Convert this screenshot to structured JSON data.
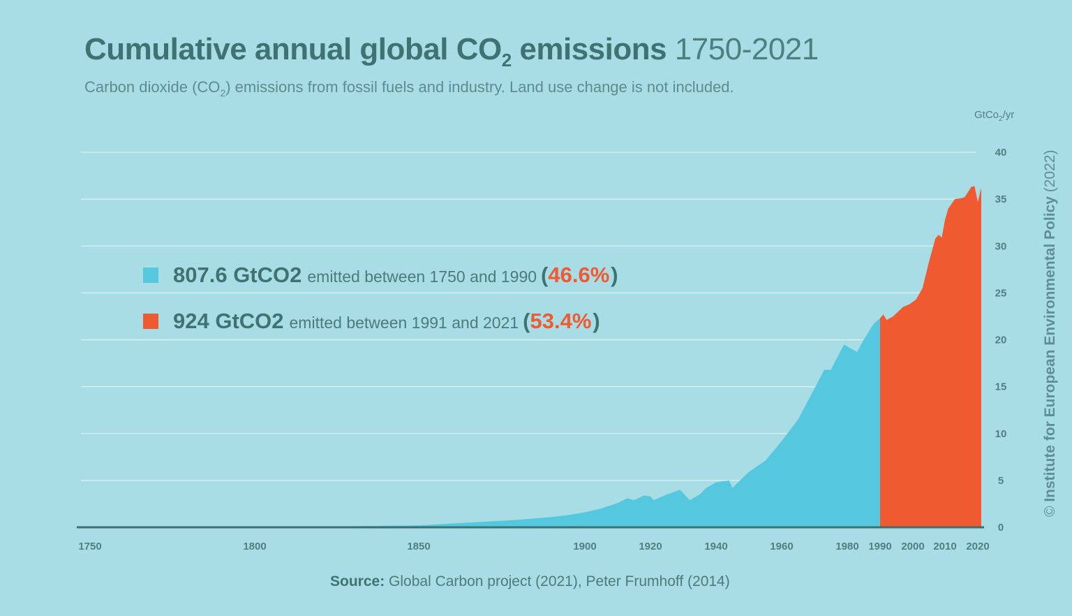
{
  "header": {
    "title_main": "Cumulative annual global CO",
    "title_sub": "2",
    "title_after": " emissions",
    "title_years": "1750-2021",
    "subtitle_a": "Carbon dioxide (CO",
    "subtitle_sub": "2",
    "subtitle_b": ") emissions from fossil fuels and industry. Land use change is not included."
  },
  "unit": {
    "a": "GtCo",
    "sub": "2",
    "b": "/yr"
  },
  "copyright": {
    "symbol": "©",
    "org": "Institute for European Environmental Policy",
    "year": "(2022)"
  },
  "legend": [
    {
      "amount": "807.6 GtCO2",
      "text": "emitted between 1750 and 1990",
      "pct": "46.6%",
      "color": "#55c7df"
    },
    {
      "amount": "924 GtCO2",
      "text": "emitted between 1991 and 2021",
      "pct": "53.4%",
      "color": "#f05a30"
    }
  ],
  "source": {
    "label": "Source:",
    "text": "Global Carbon project (2021), Peter Frumhoff (2014)"
  },
  "colors": {
    "before": "#55c7df",
    "after": "#f05a30",
    "background": "#a8dde5",
    "grid": "#dff2f5",
    "baseline": "#3c6f6f"
  },
  "chart_data": {
    "type": "area",
    "ylabel": "GtCo2/yr",
    "ylim": [
      0,
      40
    ],
    "y_ticks": [
      "0",
      "5",
      "10",
      "15",
      "20",
      "25",
      "30",
      "35",
      "40"
    ],
    "x_ticks": [
      "1750",
      "1800",
      "1850",
      "1900",
      "1920",
      "1940",
      "1960",
      "1980",
      "1990",
      "2000",
      "2010",
      "2020"
    ],
    "grid": "horizontal",
    "split_year": 1990,
    "series": [
      {
        "name": "807.6 GtCO2 emitted between 1750 and 1990",
        "points": [
          [
            1750,
            0.01
          ],
          [
            1775,
            0.02
          ],
          [
            1800,
            0.03
          ],
          [
            1825,
            0.1
          ],
          [
            1850,
            0.2
          ],
          [
            1855,
            0.3
          ],
          [
            1860,
            0.4
          ],
          [
            1865,
            0.5
          ],
          [
            1870,
            0.6
          ],
          [
            1875,
            0.7
          ],
          [
            1880,
            0.8
          ],
          [
            1885,
            0.95
          ],
          [
            1890,
            1.1
          ],
          [
            1895,
            1.3
          ],
          [
            1900,
            1.6
          ],
          [
            1905,
            2.0
          ],
          [
            1910,
            2.6
          ],
          [
            1913,
            3.1
          ],
          [
            1915,
            2.9
          ],
          [
            1918,
            3.4
          ],
          [
            1920,
            3.3
          ],
          [
            1921,
            2.9
          ],
          [
            1925,
            3.5
          ],
          [
            1929,
            4.0
          ],
          [
            1932,
            2.9
          ],
          [
            1935,
            3.5
          ],
          [
            1937,
            4.2
          ],
          [
            1940,
            4.8
          ],
          [
            1944,
            5.0
          ],
          [
            1945,
            4.2
          ],
          [
            1947,
            4.9
          ],
          [
            1950,
            5.9
          ],
          [
            1955,
            7.1
          ],
          [
            1960,
            9.2
          ],
          [
            1965,
            11.5
          ],
          [
            1970,
            14.8
          ],
          [
            1973,
            16.8
          ],
          [
            1975,
            16.8
          ],
          [
            1979,
            19.5
          ],
          [
            1981,
            19.1
          ],
          [
            1983,
            18.7
          ],
          [
            1985,
            20.0
          ],
          [
            1988,
            21.7
          ],
          [
            1990,
            22.3
          ]
        ]
      },
      {
        "name": "924 GtCO2 emitted between 1991 and 2021",
        "points": [
          [
            1990,
            22.3
          ],
          [
            1991,
            22.7
          ],
          [
            1992,
            22.1
          ],
          [
            1994,
            22.5
          ],
          [
            1997,
            23.5
          ],
          [
            1999,
            23.8
          ],
          [
            2001,
            24.3
          ],
          [
            2003,
            25.5
          ],
          [
            2005,
            28.3
          ],
          [
            2007,
            30.8
          ],
          [
            2008,
            31.2
          ],
          [
            2009,
            30.9
          ],
          [
            2010,
            32.8
          ],
          [
            2011,
            34.0
          ],
          [
            2013,
            35.0
          ],
          [
            2015,
            35.1
          ],
          [
            2016,
            35.2
          ],
          [
            2018,
            36.3
          ],
          [
            2019,
            36.4
          ],
          [
            2020,
            34.7
          ],
          [
            2021,
            36.2
          ]
        ]
      }
    ]
  }
}
